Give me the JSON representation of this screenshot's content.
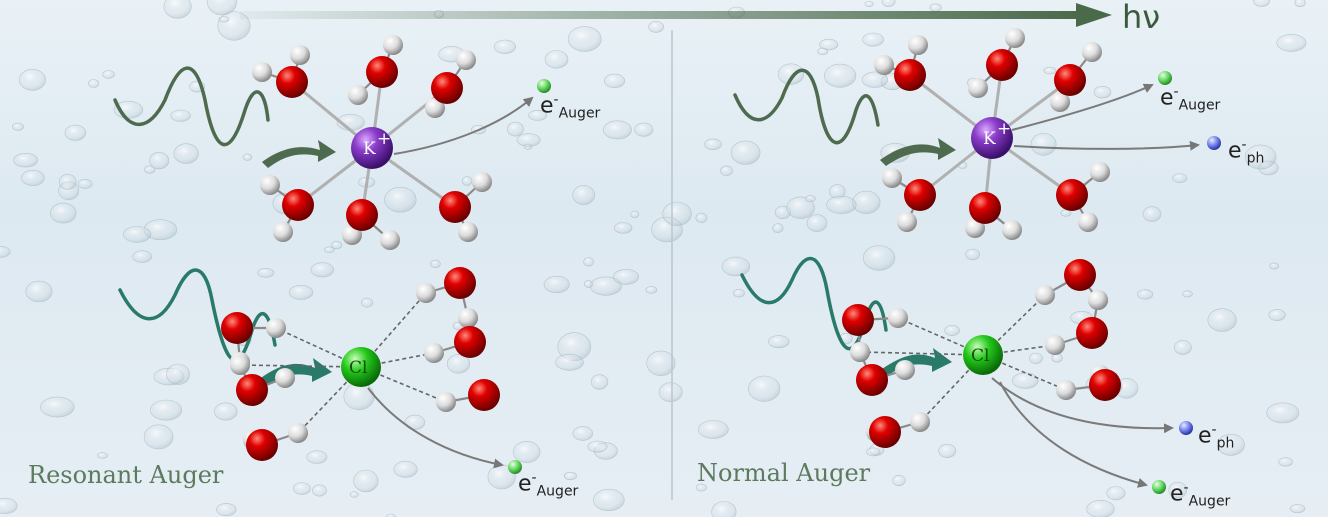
{
  "header": {
    "photon_energy_label": "hν"
  },
  "panels": [
    {
      "id": "left",
      "title": "Resonant Auger",
      "k_cluster": {
        "ion_label": "K",
        "ion_charge": "+",
        "electrons": [
          {
            "kind": "Auger",
            "base": "e",
            "sup": "-",
            "sub": "Auger"
          }
        ]
      },
      "cl_cluster": {
        "ion_label": "Cl",
        "electrons": [
          {
            "kind": "Auger",
            "base": "e",
            "sup": "-",
            "sub": "Auger"
          }
        ]
      }
    },
    {
      "id": "right",
      "title": "Normal Auger",
      "k_cluster": {
        "ion_label": "K",
        "ion_charge": "+",
        "electrons": [
          {
            "kind": "Auger",
            "base": "e",
            "sup": "-",
            "sub": "Auger"
          },
          {
            "kind": "ph",
            "base": "e",
            "sup": "-",
            "sub": "ph"
          }
        ]
      },
      "cl_cluster": {
        "ion_label": "Cl",
        "electrons": [
          {
            "kind": "ph",
            "base": "e",
            "sup": "-",
            "sub": "ph"
          },
          {
            "kind": "Auger",
            "base": "e",
            "sup": "-",
            "sub": "Auger"
          }
        ]
      }
    }
  ],
  "colors": {
    "oxygen": "#d40000",
    "hydrogen": "#f2f2f2",
    "potassium": "#8a3cc9",
    "chlorine": "#22c71a",
    "auger_electron": "#5ad35a",
    "photo_electron": "#6a78e8",
    "photon_wave_k": "#4f6b4f",
    "photon_wave_cl": "#2a7a6a",
    "hv_arrow": "#4a6a4a"
  }
}
